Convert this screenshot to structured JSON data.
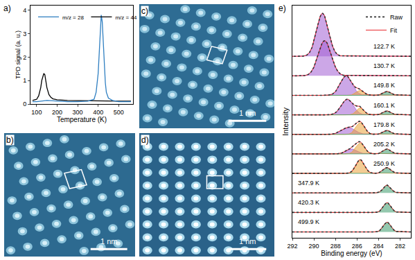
{
  "chart_data": [
    {
      "type": "line",
      "title": "a)",
      "xlabel": "Temperature (K)",
      "ylabel": "TPD signal (a. u.)",
      "xlim": [
        70,
        570
      ],
      "xticks": [
        100,
        200,
        300,
        400,
        500
      ],
      "ylim": [
        0,
        4.2
      ],
      "yticks": [
        0,
        1,
        2,
        3,
        4
      ],
      "legend": "upper left",
      "series": [
        {
          "name": "m/z = 44",
          "color": "#000000",
          "x": [
            80,
            100,
            110,
            120,
            125,
            130,
            135,
            140,
            145,
            150,
            160,
            170,
            180,
            200,
            250,
            300,
            350,
            400,
            450,
            500,
            560
          ],
          "values": [
            0.15,
            0.2,
            0.35,
            0.7,
            1.0,
            1.2,
            1.3,
            1.25,
            1.0,
            0.7,
            0.4,
            0.28,
            0.22,
            0.18,
            0.15,
            0.14,
            0.13,
            0.12,
            0.12,
            0.12,
            0.12
          ]
        },
        {
          "name": "m/z = 28",
          "color": "#2f7fc1",
          "x": [
            80,
            100,
            150,
            200,
            250,
            300,
            350,
            380,
            390,
            400,
            405,
            410,
            415,
            420,
            425,
            430,
            435,
            440,
            450,
            470,
            500,
            560
          ],
          "values": [
            0.1,
            0.1,
            0.15,
            0.12,
            0.1,
            0.1,
            0.12,
            0.2,
            0.5,
            1.3,
            2.2,
            3.2,
            3.8,
            3.5,
            2.6,
            1.6,
            0.9,
            0.5,
            0.25,
            0.15,
            0.1,
            0.1
          ]
        }
      ]
    },
    {
      "type": "image",
      "title": "b)",
      "annotations": [
        "1 nm"
      ]
    },
    {
      "type": "image",
      "title": "c)",
      "annotations": [
        "1 nm"
      ]
    },
    {
      "type": "image",
      "title": "d)",
      "annotations": [
        "1 nm"
      ]
    },
    {
      "type": "line",
      "title": "e)",
      "xlabel": "Binding energy (eV)",
      "ylabel": "Intensity",
      "xlim": [
        292,
        281
      ],
      "xticks": [
        292,
        290,
        288,
        286,
        284,
        282
      ],
      "ylim": [
        -0.3,
        11.6
      ],
      "tick_labels": "x",
      "legend": "upper right",
      "series": [
        {
          "name": "Raw",
          "color": "#333333",
          "line_style": "dotted"
        },
        {
          "name": "Fit",
          "color": "#e8262b",
          "line_style": "solid"
        }
      ],
      "spectra": [
        {
          "label": "122.7 K",
          "peaks": [
            {
              "center": 289.2,
              "height": 2.2,
              "width": 0.55,
              "color": "#a25fd4"
            }
          ]
        },
        {
          "label": "130.7 K",
          "peaks": [
            {
              "center": 289.0,
              "height": 1.8,
              "width": 0.6,
              "color": "#a25fd4"
            }
          ]
        },
        {
          "label": "149.8 K",
          "peaks": [
            {
              "center": 287.0,
              "height": 1.0,
              "width": 0.55,
              "color": "#a25fd4"
            },
            {
              "center": 285.7,
              "height": 0.25,
              "width": 0.35,
              "color": "#e9a23b"
            },
            {
              "center": 283.2,
              "height": 0.2,
              "width": 0.35,
              "color": "#3d9b6b"
            }
          ]
        },
        {
          "label": "160.1 K",
          "peaks": [
            {
              "center": 286.9,
              "height": 0.8,
              "width": 0.55,
              "color": "#a25fd4"
            },
            {
              "center": 285.7,
              "height": 0.35,
              "width": 0.35,
              "color": "#e9a23b"
            },
            {
              "center": 283.2,
              "height": 0.2,
              "width": 0.35,
              "color": "#3d9b6b"
            }
          ]
        },
        {
          "label": "179.8 K",
          "peaks": [
            {
              "center": 286.8,
              "height": 0.35,
              "width": 0.6,
              "color": "#a25fd4"
            },
            {
              "center": 285.7,
              "height": 0.6,
              "width": 0.4,
              "color": "#e9a23b"
            },
            {
              "center": 283.2,
              "height": 0.2,
              "width": 0.35,
              "color": "#3d9b6b"
            }
          ]
        },
        {
          "label": "205.2 K",
          "peaks": [
            {
              "center": 286.5,
              "height": 0.25,
              "width": 0.5,
              "color": "#a25fd4"
            },
            {
              "center": 285.7,
              "height": 0.55,
              "width": 0.4,
              "color": "#e9a23b"
            },
            {
              "center": 283.2,
              "height": 0.25,
              "width": 0.35,
              "color": "#3d9b6b"
            }
          ]
        },
        {
          "label": "250.9 K",
          "peaks": [
            {
              "center": 285.7,
              "height": 0.7,
              "width": 0.4,
              "color": "#e9a23b"
            },
            {
              "center": 283.2,
              "height": 0.3,
              "width": 0.35,
              "color": "#3d9b6b"
            }
          ]
        },
        {
          "label": "347.9 K",
          "peaks": [
            {
              "center": 283.2,
              "height": 0.4,
              "width": 0.35,
              "color": "#3d9b6b"
            }
          ]
        },
        {
          "label": "420.3 K",
          "peaks": [
            {
              "center": 283.2,
              "height": 0.5,
              "width": 0.35,
              "color": "#3d9b6b"
            }
          ]
        },
        {
          "label": "499.9 K",
          "peaks": [
            {
              "center": 283.2,
              "height": 0.5,
              "width": 0.35,
              "color": "#3d9b6b"
            }
          ]
        }
      ]
    }
  ]
}
